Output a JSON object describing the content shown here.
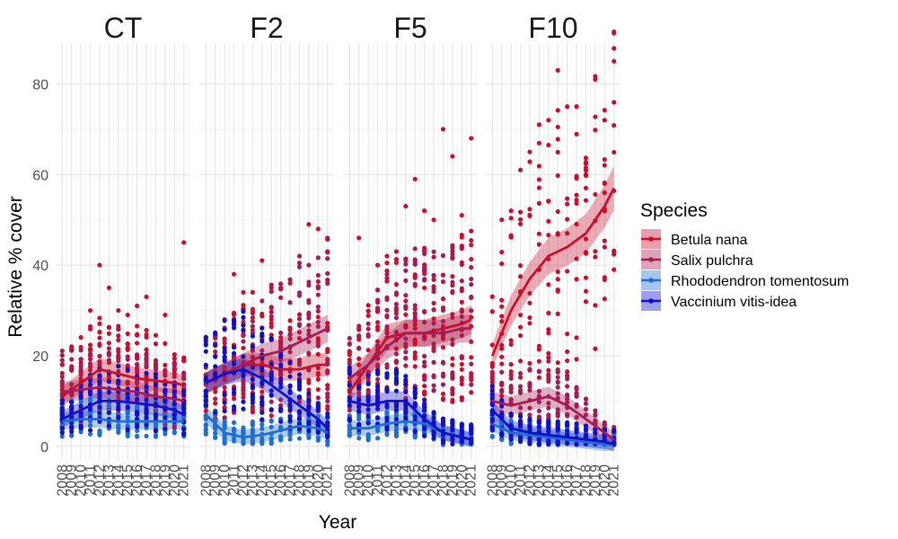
{
  "chart_data": {
    "type": "scatter",
    "ylabel": "Relative % cover",
    "xlabel": "Year",
    "ylim": [
      -3,
      89
    ],
    "xlim": [
      2007.3,
      2021.7
    ],
    "y_ticks": [
      0,
      20,
      40,
      60,
      80
    ],
    "x_ticks": [
      2008,
      2009,
      2010,
      2011,
      2012,
      2013,
      2014,
      2015,
      2016,
      2017,
      2018,
      2019,
      2020,
      2021
    ],
    "facets": [
      "CT",
      "F2",
      "F5",
      "F10"
    ],
    "legend": {
      "title": "Species",
      "position": "right",
      "items": [
        {
          "label": "Betula nana",
          "color": "#c8102e"
        },
        {
          "label": "Salix pulchra",
          "color": "#a51c55"
        },
        {
          "label": "Rhododendron tomentosum",
          "color": "#1f6fd1"
        },
        {
          "label": "Vaccinium vitis-idea",
          "color": "#1010c8"
        }
      ]
    },
    "series": [
      {
        "name": "Betula nana",
        "facet": "CT",
        "x": [
          2008,
          2010,
          2012,
          2014,
          2016,
          2018,
          2020,
          2021
        ],
        "trend": [
          11,
          14,
          17,
          16,
          15,
          14.5,
          14,
          13.5
        ]
      },
      {
        "name": "Salix pulchra",
        "facet": "CT",
        "x": [
          2008,
          2010,
          2012,
          2014,
          2016,
          2018,
          2020,
          2021
        ],
        "trend": [
          12,
          12.5,
          13,
          12.5,
          12,
          11,
          10.5,
          10
        ]
      },
      {
        "name": "Rhododendron tomentosum",
        "facet": "CT",
        "x": [
          2008,
          2010,
          2012,
          2014,
          2016,
          2018,
          2020,
          2021
        ],
        "trend": [
          5.5,
          6,
          6,
          5.5,
          5.5,
          5.5,
          5.5,
          5.5
        ]
      },
      {
        "name": "Vaccinium vitis-idea",
        "facet": "CT",
        "x": [
          2008,
          2010,
          2012,
          2014,
          2016,
          2018,
          2020,
          2021
        ],
        "trend": [
          6,
          8,
          10,
          10,
          9.5,
          9,
          8,
          7
        ]
      },
      {
        "name": "Betula nana",
        "facet": "F2",
        "x": [
          2008,
          2010,
          2012,
          2014,
          2016,
          2018,
          2020,
          2021
        ],
        "trend": [
          14,
          16,
          18,
          18,
          17,
          17,
          18,
          18
        ]
      },
      {
        "name": "Salix pulchra",
        "facet": "F2",
        "x": [
          2008,
          2010,
          2012,
          2014,
          2016,
          2018,
          2020,
          2021
        ],
        "trend": [
          14,
          16,
          18,
          20,
          21,
          23,
          25,
          26
        ]
      },
      {
        "name": "Rhododendron tomentosum",
        "facet": "F2",
        "x": [
          2008,
          2010,
          2012,
          2014,
          2016,
          2018,
          2020,
          2021
        ],
        "trend": [
          7,
          3,
          2,
          2.5,
          3.5,
          4.5,
          4,
          3
        ]
      },
      {
        "name": "Vaccinium vitis-idea",
        "facet": "F2",
        "x": [
          2008,
          2010,
          2012,
          2014,
          2016,
          2018,
          2020,
          2021
        ],
        "trend": [
          14,
          16,
          17,
          15,
          12,
          9,
          6,
          4
        ]
      },
      {
        "name": "Betula nana",
        "facet": "F5",
        "x": [
          2008,
          2010,
          2012,
          2014,
          2016,
          2018,
          2020,
          2021
        ],
        "trend": [
          12,
          18,
          24,
          25,
          25,
          26,
          27,
          28
        ]
      },
      {
        "name": "Salix pulchra",
        "facet": "F5",
        "x": [
          2008,
          2010,
          2012,
          2014,
          2016,
          2018,
          2020,
          2021
        ],
        "trend": [
          15,
          18,
          22,
          25,
          25,
          25,
          26,
          26
        ]
      },
      {
        "name": "Rhododendron tomentosum",
        "facet": "F5",
        "x": [
          2008,
          2010,
          2012,
          2014,
          2016,
          2018,
          2020,
          2021
        ],
        "trend": [
          4,
          4,
          5,
          5.5,
          5,
          3,
          2,
          1.5
        ]
      },
      {
        "name": "Vaccinium vitis-idea",
        "facet": "F5",
        "x": [
          2008,
          2010,
          2012,
          2014,
          2016,
          2018,
          2020,
          2021
        ],
        "trend": [
          10,
          9,
          10,
          10,
          6,
          3,
          2,
          1.5
        ]
      },
      {
        "name": "Betula nana",
        "facet": "F10",
        "x": [
          2008,
          2010,
          2012,
          2014,
          2016,
          2018,
          2020,
          2021
        ],
        "trend": [
          20,
          30,
          37,
          42,
          44,
          47,
          53,
          57
        ]
      },
      {
        "name": "Salix pulchra",
        "facet": "F10",
        "x": [
          2008,
          2010,
          2012,
          2014,
          2016,
          2018,
          2020,
          2021
        ],
        "trend": [
          10,
          9,
          10,
          11,
          9,
          6,
          3,
          1.5
        ]
      },
      {
        "name": "Rhododendron tomentosum",
        "facet": "F10",
        "x": [
          2008,
          2010,
          2012,
          2014,
          2016,
          2018,
          2020,
          2021
        ],
        "trend": [
          5,
          3,
          2.5,
          2,
          1.5,
          1,
          0.5,
          0.3
        ]
      },
      {
        "name": "Vaccinium vitis-idea",
        "facet": "F10",
        "x": [
          2008,
          2010,
          2012,
          2014,
          2016,
          2018,
          2020,
          2021
        ],
        "trend": [
          8,
          4,
          3,
          2.5,
          2,
          1.5,
          1,
          0.5
        ]
      }
    ],
    "point_summary": [
      {
        "name": "Betula nana",
        "facet": "CT",
        "years": [
          2008,
          2011,
          2012,
          2013,
          2014,
          2015,
          2016,
          2017,
          2019,
          2021
        ],
        "max": [
          18,
          30,
          40,
          35,
          30,
          29,
          31,
          33,
          29,
          45
        ]
      },
      {
        "name": "Betula nana",
        "facet": "F2",
        "years": [
          2011,
          2012,
          2013,
          2014,
          2015,
          2016,
          2017,
          2018,
          2019,
          2020,
          2021
        ],
        "max": [
          38,
          34,
          34,
          41,
          35,
          35,
          36,
          42,
          49,
          48,
          43
        ]
      },
      {
        "name": "Betula nana",
        "facet": "F5",
        "years": [
          2009,
          2011,
          2012,
          2013,
          2014,
          2015,
          2016,
          2017,
          2018,
          2019,
          2020,
          2021
        ],
        "max": [
          46,
          40,
          42,
          43,
          53,
          59,
          52,
          50,
          70,
          64,
          51,
          68
        ]
      },
      {
        "name": "Betula nana",
        "facet": "F10",
        "years": [
          2009,
          2010,
          2011,
          2012,
          2013,
          2014,
          2015,
          2016,
          2017,
          2018,
          2019,
          2020,
          2021
        ],
        "max": [
          50,
          52,
          61,
          65,
          71,
          72,
          83,
          75,
          75,
          60,
          81,
          72,
          85
        ]
      }
    ]
  }
}
